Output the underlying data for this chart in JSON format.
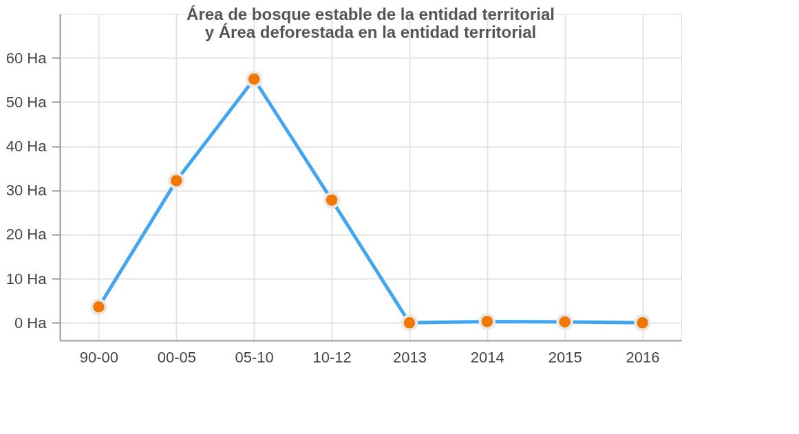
{
  "chart_data": {
    "type": "line",
    "title": "Área de bosque estable de la entidad territorial\ny Área deforestada en la entidad territorial",
    "categories": [
      "90-00",
      "00-05",
      "05-10",
      "10-12",
      "2013",
      "2014",
      "2015",
      "2016"
    ],
    "series": [
      {
        "color": "#42a5f0",
        "colors": [
          "#f07800",
          "#f07800",
          "#f07800",
          "#f07800",
          "#f07800",
          "#f07800",
          "#f07800",
          "#f07800"
        ],
        "values": [
          3.6,
          32.2,
          55.2,
          27.8,
          0,
          0.3,
          0.2,
          0
        ]
      }
    ],
    "ylim": [
      -4,
      70
    ],
    "yticks": [
      {
        "value": 0,
        "label": "0 Ha"
      },
      {
        "value": 10,
        "label": "10 Ha"
      },
      {
        "value": 20,
        "label": "20 Ha"
      },
      {
        "value": 30,
        "label": "30 Ha"
      },
      {
        "value": 40,
        "label": "40 Ha"
      },
      {
        "value": 50,
        "label": "50 Ha"
      },
      {
        "value": 60,
        "label": "60 Ha"
      }
    ],
    "grid": true,
    "marker": "circle",
    "line_style": "solid"
  }
}
